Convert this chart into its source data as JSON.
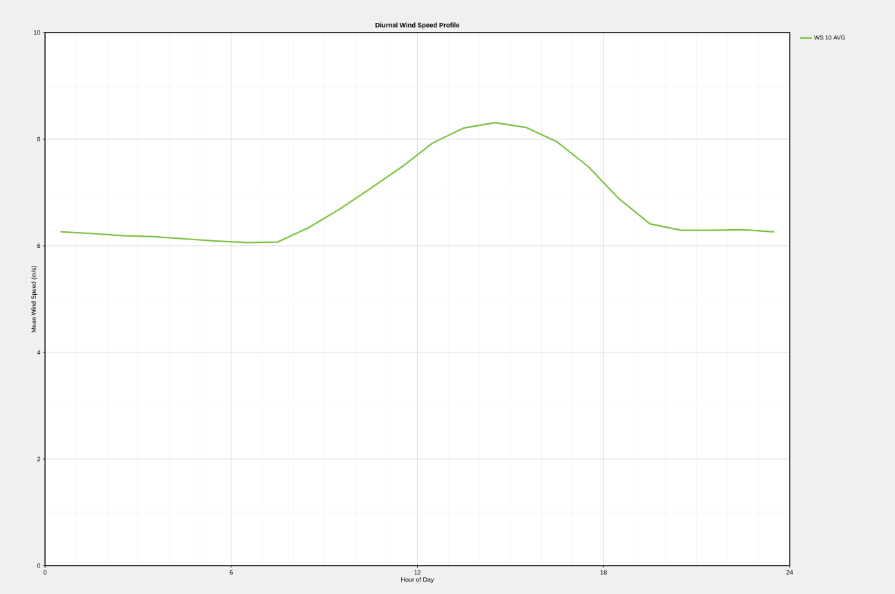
{
  "chart_data": {
    "type": "line",
    "title": "Diurnal Wind Speed Profile",
    "xlabel": "Hour of Day",
    "ylabel": "Mean Wind Speed (m/s)",
    "x": [
      0.5,
      1.5,
      2.5,
      3.5,
      4.5,
      5.5,
      6.5,
      7.5,
      8.5,
      9.5,
      10.5,
      11.5,
      12.5,
      13.5,
      14.5,
      15.5,
      16.5,
      17.5,
      18.5,
      19.5,
      20.5,
      21.5,
      22.5,
      23.5
    ],
    "series": [
      {
        "name": "WS 10 AVG",
        "color": "#7dc242",
        "values": [
          6.26,
          6.23,
          6.19,
          6.17,
          6.13,
          6.09,
          6.06,
          6.07,
          6.34,
          6.69,
          7.08,
          7.48,
          7.93,
          8.21,
          8.31,
          8.22,
          7.95,
          7.49,
          6.88,
          6.41,
          6.29,
          6.29,
          6.3,
          6.26
        ]
      }
    ],
    "xlim": [
      0,
      24
    ],
    "ylim": [
      0,
      10
    ],
    "xticks": [
      0,
      6,
      12,
      18,
      24
    ],
    "yticks": [
      0,
      2,
      4,
      6,
      8,
      10
    ],
    "grid": true,
    "legend": "top right",
    "marker": "none",
    "line_style": "solid"
  }
}
